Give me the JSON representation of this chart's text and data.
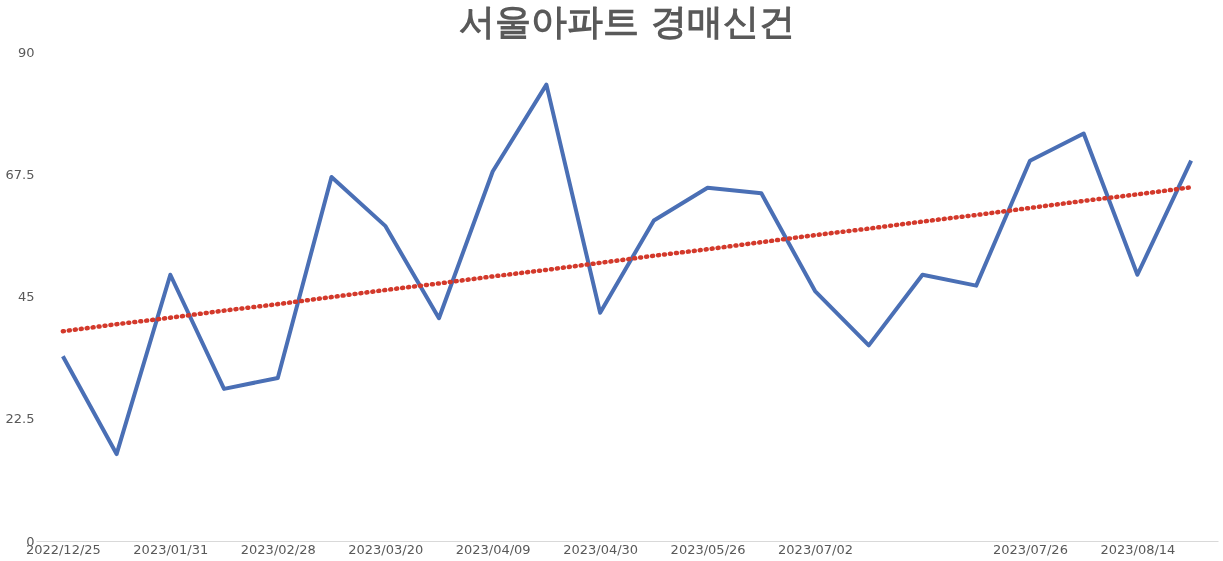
{
  "chart_data": {
    "type": "line",
    "title": "서울아파트 경매신건",
    "categories": [
      "2022/12/25",
      null,
      "2023/01/31",
      null,
      "2023/02/28",
      null,
      "2023/03/20",
      null,
      "2023/04/09",
      null,
      "2023/04/30",
      null,
      "2023/05/26",
      null,
      "2023/07/02",
      null,
      null,
      null,
      "2023/07/26",
      null,
      "2023/08/14",
      null
    ],
    "series": [
      {
        "color": "#4a6fb5",
        "line_style": "solid",
        "values": [
          34,
          16,
          49,
          28,
          30,
          67,
          58,
          41,
          68,
          84,
          42,
          59,
          65,
          64,
          46,
          36,
          49,
          47,
          70,
          75,
          49,
          70
        ]
      },
      {
        "type": "line",
        "color": "#d3392b",
        "line_style": "dotted",
        "values": [
          38.6,
          39.9,
          41.1,
          42.4,
          43.6,
          44.9,
          46.2,
          47.4,
          48.7,
          49.9,
          51.2,
          52.5,
          53.7,
          55.0,
          56.3,
          57.5,
          58.8,
          60.0,
          61.3,
          62.6,
          63.8,
          65.1
        ]
      }
    ],
    "ylim": [
      0,
      90
    ],
    "yticks": [
      0,
      22.5,
      45,
      67.5,
      90
    ],
    "grid": false
  }
}
